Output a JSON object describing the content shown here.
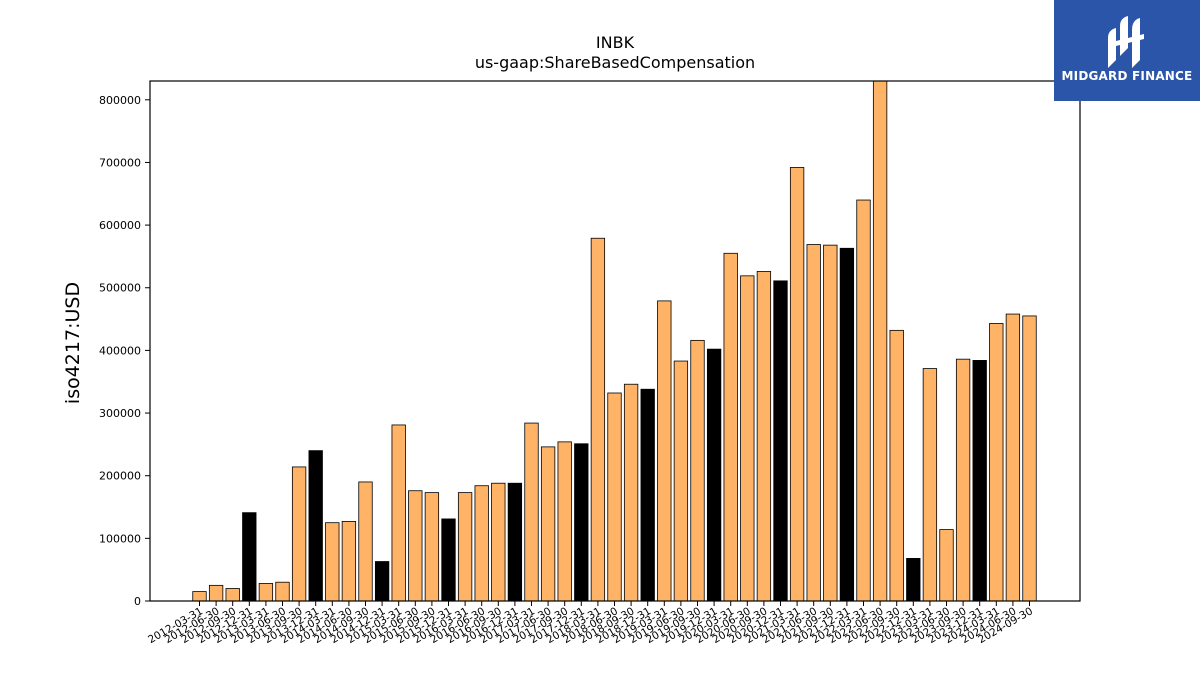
{
  "chart_data": {
    "type": "bar",
    "title": "INBK",
    "subtitle": "us-gaap:ShareBasedCompensation",
    "xlabel": "",
    "ylabel": "iso4217:USD",
    "ylim": [
      0,
      830000
    ],
    "yticks": [
      0,
      100000,
      200000,
      300000,
      400000,
      500000,
      600000,
      700000,
      800000
    ],
    "grid": false,
    "legend": "none",
    "colors": {
      "quarterly": "#ffb366",
      "annual": "#000000",
      "edge": "#000000"
    },
    "categories": [
      "2012-03-31",
      "2012-06-30",
      "2012-09-30",
      "2012-12-31",
      "2013-03-31",
      "2013-06-30",
      "2013-09-30",
      "2013-12-31",
      "2014-03-31",
      "2014-06-30",
      "2014-09-30",
      "2014-12-31",
      "2015-03-31",
      "2015-06-30",
      "2015-09-30",
      "2015-12-31",
      "2016-03-31",
      "2016-06-30",
      "2016-09-30",
      "2016-12-31",
      "2017-03-31",
      "2017-06-30",
      "2017-09-30",
      "2017-12-31",
      "2018-03-31",
      "2018-06-30",
      "2018-09-30",
      "2018-12-31",
      "2019-03-31",
      "2019-06-30",
      "2019-09-30",
      "2019-12-31",
      "2020-03-31",
      "2020-06-30",
      "2020-09-30",
      "2020-12-31",
      "2021-03-31",
      "2021-06-30",
      "2021-09-30",
      "2021-12-31",
      "2022-03-31",
      "2022-06-30",
      "2022-09-30",
      "2022-12-31",
      "2023-03-31",
      "2023-06-30",
      "2023-09-30",
      "2023-12-31",
      "2024-03-31",
      "2024-06-30",
      "2024-09-30"
    ],
    "values": [
      15000,
      25000,
      20000,
      141000,
      28000,
      30000,
      214000,
      240000,
      125000,
      127000,
      190000,
      63000,
      281000,
      176000,
      173000,
      131000,
      173000,
      184000,
      188000,
      188000,
      284000,
      246000,
      254000,
      251000,
      579000,
      332000,
      346000,
      338000,
      479000,
      383000,
      416000,
      402000,
      555000,
      519000,
      526000,
      511000,
      692000,
      569000,
      568000,
      563000,
      640000,
      830000,
      432000,
      68000,
      371000,
      114000,
      386000,
      384000,
      443000,
      458000,
      455000
    ],
    "dark": [
      false,
      false,
      false,
      true,
      false,
      false,
      false,
      true,
      false,
      false,
      false,
      true,
      false,
      false,
      false,
      true,
      false,
      false,
      false,
      true,
      false,
      false,
      false,
      true,
      false,
      false,
      false,
      true,
      false,
      false,
      false,
      true,
      false,
      false,
      false,
      true,
      false,
      false,
      false,
      true,
      false,
      false,
      false,
      true,
      false,
      false,
      false,
      true,
      false,
      false,
      false
    ]
  },
  "logo": {
    "text": "MIDGARD FINANCE"
  }
}
